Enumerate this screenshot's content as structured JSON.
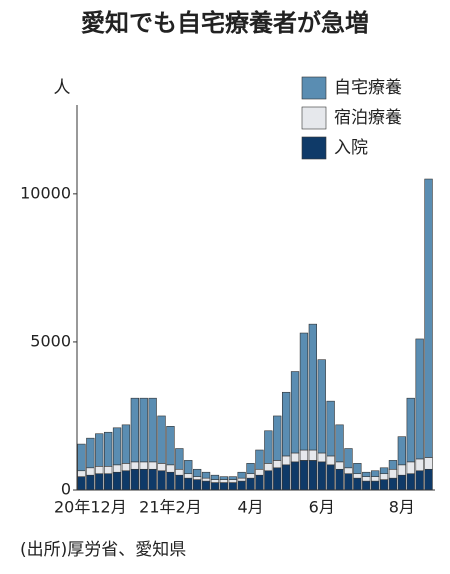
{
  "chart_data": {
    "type": "stacked_bar",
    "title": "愛知でも自宅療養者が急増",
    "y_label": "人",
    "source": "(出所)厚労省、愛知県",
    "categories": [
      null,
      "20年12月",
      null,
      null,
      null,
      null,
      null,
      null,
      null,
      null,
      "21年2月",
      null,
      null,
      null,
      null,
      null,
      null,
      null,
      null,
      "4月",
      null,
      null,
      null,
      null,
      null,
      null,
      null,
      "6月",
      null,
      null,
      null,
      null,
      null,
      null,
      null,
      null,
      "8月",
      null,
      null,
      null
    ],
    "series": [
      {
        "name": "自宅療養",
        "color": "#5a8db2",
        "values": [
          900,
          1000,
          1100,
          1150,
          1250,
          1300,
          2150,
          2150,
          2150,
          1600,
          1300,
          700,
          450,
          250,
          200,
          150,
          100,
          100,
          200,
          350,
          650,
          1100,
          1500,
          2150,
          2750,
          3950,
          4250,
          3150,
          1850,
          1250,
          650,
          350,
          150,
          200,
          200,
          300,
          950,
          2150,
          4050,
          9400
        ]
      },
      {
        "name": "宿泊療養",
        "color": "#e6e8ec",
        "values": [
          200,
          250,
          250,
          250,
          250,
          250,
          250,
          250,
          250,
          250,
          250,
          200,
          150,
          100,
          100,
          100,
          100,
          100,
          100,
          150,
          200,
          250,
          250,
          300,
          300,
          350,
          350,
          300,
          300,
          250,
          200,
          150,
          150,
          150,
          200,
          300,
          350,
          400,
          400,
          400
        ]
      },
      {
        "name": "入院",
        "color": "#0f3a68",
        "values": [
          450,
          500,
          550,
          550,
          600,
          650,
          700,
          700,
          700,
          650,
          600,
          500,
          400,
          350,
          300,
          250,
          250,
          250,
          300,
          400,
          500,
          650,
          750,
          850,
          950,
          1000,
          1000,
          950,
          850,
          700,
          550,
          400,
          300,
          300,
          350,
          400,
          500,
          550,
          650,
          700
        ]
      }
    ],
    "ylim": [
      0,
      13000
    ],
    "yticks": [
      0,
      5000,
      10000
    ]
  }
}
